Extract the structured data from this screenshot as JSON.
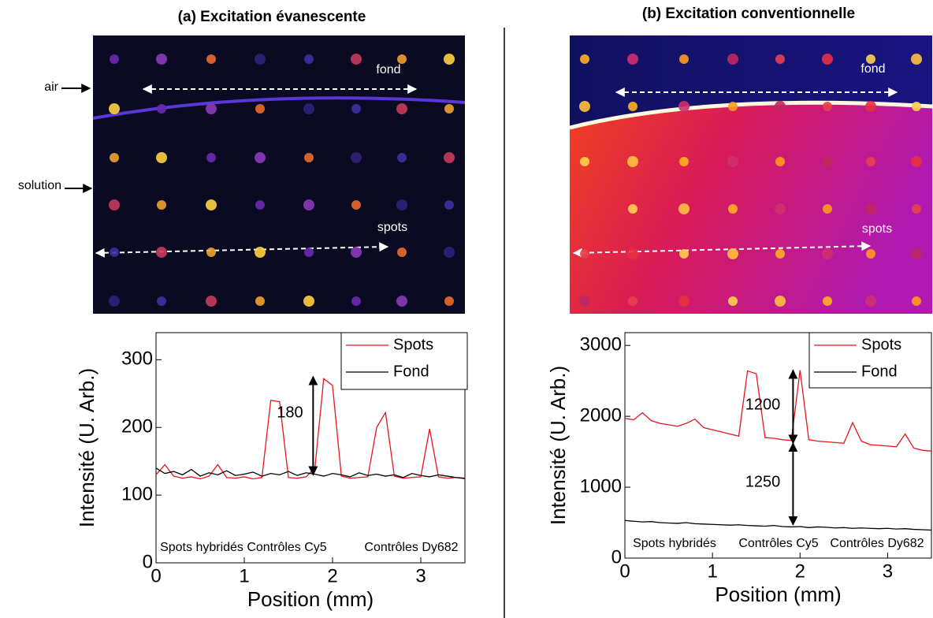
{
  "figures": [
    {
      "title": "(a) Excitation évanescente",
      "image_labels": [
        "fond",
        "spots"
      ],
      "side_labels": [
        "air",
        "solution"
      ]
    },
    {
      "title": "(b) Excitation conventionnelle",
      "image_labels": [
        "fond",
        "spots"
      ]
    }
  ],
  "chart_data": [
    {
      "type": "line",
      "x": [
        0,
        0.1,
        0.2,
        0.3,
        0.4,
        0.5,
        0.6,
        0.7,
        0.8,
        0.9,
        1.0,
        1.1,
        1.2,
        1.3,
        1.4,
        1.5,
        1.6,
        1.7,
        1.8,
        1.9,
        2.0,
        2.1,
        2.2,
        2.3,
        2.4,
        2.5,
        2.6,
        2.7,
        2.8,
        2.9,
        3.0,
        3.1,
        3.2,
        3.3,
        3.4,
        3.5
      ],
      "series": [
        {
          "name": "Spots",
          "color": "#e8141e",
          "values": [
            130,
            145,
            128,
            125,
            127,
            124,
            128,
            145,
            126,
            125,
            127,
            124,
            126,
            240,
            238,
            126,
            125,
            127,
            140,
            272,
            262,
            128,
            125,
            126,
            127,
            200,
            222,
            128,
            125,
            126,
            127,
            198,
            127,
            125,
            126,
            124
          ]
        },
        {
          "name": "Fond",
          "color": "#000000",
          "values": [
            140,
            132,
            135,
            130,
            138,
            128,
            133,
            130,
            136,
            129,
            131,
            134,
            128,
            132,
            130,
            135,
            129,
            133,
            131,
            128,
            132,
            130,
            127,
            133,
            129,
            131,
            128,
            130,
            126,
            132,
            129,
            127,
            130,
            128,
            126,
            125
          ]
        }
      ],
      "xlim": [
        0,
        3.5
      ],
      "ylim": [
        0,
        340
      ],
      "xticks": [
        0,
        1,
        2,
        3
      ],
      "yticks": [
        0,
        100,
        200,
        300
      ],
      "xlabel": "Position (mm)",
      "ylabel": "Intensité (U. Arb.)",
      "legend": "upper right",
      "annotations": [
        "180"
      ],
      "region_labels": [
        "Spots hybridés",
        "Contrôles Cy5",
        "Contrôles Dy682"
      ]
    },
    {
      "type": "line",
      "x": [
        0,
        0.1,
        0.2,
        0.3,
        0.4,
        0.5,
        0.6,
        0.7,
        0.8,
        0.9,
        1.0,
        1.1,
        1.2,
        1.3,
        1.4,
        1.5,
        1.6,
        1.7,
        1.8,
        1.9,
        2.0,
        2.1,
        2.2,
        2.3,
        2.4,
        2.5,
        2.6,
        2.7,
        2.8,
        2.9,
        3.0,
        3.1,
        3.2,
        3.3,
        3.4,
        3.5
      ],
      "series": [
        {
          "name": "Spots",
          "color": "#e8141e",
          "values": [
            1970,
            1950,
            2050,
            1940,
            1900,
            1880,
            1860,
            1900,
            1960,
            1840,
            1810,
            1780,
            1750,
            1720,
            2640,
            2600,
            1700,
            1690,
            1670,
            1660,
            2650,
            1670,
            1650,
            1640,
            1630,
            1620,
            1910,
            1650,
            1600,
            1590,
            1580,
            1570,
            1750,
            1550,
            1520,
            1510
          ]
        },
        {
          "name": "Fond",
          "color": "#000000",
          "values": [
            530,
            520,
            510,
            515,
            500,
            495,
            490,
            500,
            485,
            480,
            475,
            470,
            465,
            470,
            460,
            455,
            450,
            460,
            445,
            440,
            445,
            430,
            440,
            435,
            425,
            430,
            420,
            425,
            420,
            415,
            420,
            410,
            415,
            405,
            400,
            395
          ]
        }
      ],
      "xlim": [
        0,
        3.5
      ],
      "ylim": [
        0,
        3180
      ],
      "xticks": [
        0,
        1,
        2,
        3
      ],
      "yticks": [
        0,
        1000,
        2000,
        3000
      ],
      "xlabel": "Position (mm)",
      "ylabel": "Intensité (U. Arb.)",
      "legend": "upper right",
      "annotations": [
        "1200",
        "1250"
      ],
      "region_labels": [
        "Spots hybridés",
        "Contrôles Cy5",
        "Contrôles Dy682"
      ]
    }
  ]
}
